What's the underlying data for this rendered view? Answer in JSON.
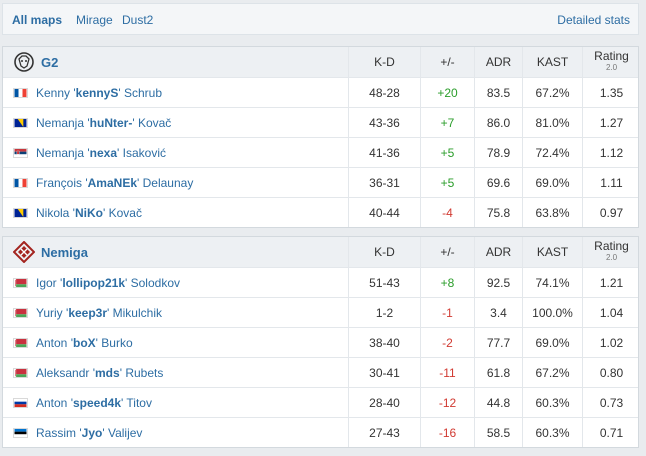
{
  "tabs": [
    {
      "label": "All maps",
      "active": true
    },
    {
      "label": "Mirage",
      "active": false
    },
    {
      "label": "Dust2",
      "active": false
    }
  ],
  "detailed_stats": "Detailed stats",
  "headers": {
    "kd": "K-D",
    "pm": "+/-",
    "adr": "ADR",
    "kast": "KAST",
    "rating": "Rating",
    "rating_sub": "2.0"
  },
  "teams": [
    {
      "name": "G2",
      "logo": "g2-logo",
      "players": [
        {
          "first": "Kenny '",
          "nick": "kennyS",
          "last": "' Schrub",
          "flag": "france",
          "kd": "48-28",
          "pm": "+20",
          "adr": "83.5",
          "kast": "67.2%",
          "rating": "1.35"
        },
        {
          "first": "Nemanja '",
          "nick": "huNter-",
          "last": "' Kovač",
          "flag": "bosnia",
          "kd": "43-36",
          "pm": "+7",
          "adr": "86.0",
          "kast": "81.0%",
          "rating": "1.27"
        },
        {
          "first": "Nemanja '",
          "nick": "nexa",
          "last": "' Isaković",
          "flag": "serbia",
          "kd": "41-36",
          "pm": "+5",
          "adr": "78.9",
          "kast": "72.4%",
          "rating": "1.12"
        },
        {
          "first": "François '",
          "nick": "AmaNEk",
          "last": "' Delaunay",
          "flag": "france",
          "kd": "36-31",
          "pm": "+5",
          "adr": "69.6",
          "kast": "69.0%",
          "rating": "1.11"
        },
        {
          "first": "Nikola '",
          "nick": "NiKo",
          "last": "' Kovač",
          "flag": "bosnia",
          "kd": "40-44",
          "pm": "-4",
          "adr": "75.8",
          "kast": "63.8%",
          "rating": "0.97"
        }
      ]
    },
    {
      "name": "Nemiga",
      "logo": "nemiga-logo",
      "players": [
        {
          "first": "Igor '",
          "nick": "lollipop21k",
          "last": "' Solodkov",
          "flag": "belarus",
          "kd": "51-43",
          "pm": "+8",
          "adr": "92.5",
          "kast": "74.1%",
          "rating": "1.21"
        },
        {
          "first": "Yuriy '",
          "nick": "keep3r",
          "last": "' Mikulchik",
          "flag": "belarus",
          "kd": "1-2",
          "pm": "-1",
          "adr": "3.4",
          "kast": "100.0%",
          "rating": "1.04"
        },
        {
          "first": "Anton '",
          "nick": "boX",
          "last": "' Burko",
          "flag": "belarus",
          "kd": "38-40",
          "pm": "-2",
          "adr": "77.7",
          "kast": "69.0%",
          "rating": "1.02"
        },
        {
          "first": "Aleksandr '",
          "nick": "mds",
          "last": "' Rubets",
          "flag": "belarus",
          "kd": "30-41",
          "pm": "-11",
          "adr": "61.8",
          "kast": "67.2%",
          "rating": "0.80"
        },
        {
          "first": "Anton '",
          "nick": "speed4k",
          "last": "' Titov",
          "flag": "russia",
          "kd": "28-40",
          "pm": "-12",
          "adr": "44.8",
          "kast": "60.3%",
          "rating": "0.73"
        },
        {
          "first": "Rassim '",
          "nick": "Jyo",
          "last": "' Valijev",
          "flag": "estonia",
          "kd": "27-43",
          "pm": "-16",
          "adr": "58.5",
          "kast": "60.3%",
          "rating": "0.71"
        }
      ]
    }
  ],
  "colors": {
    "link": "#2d6da3",
    "positive": "#2a9d2a",
    "negative": "#d13a32"
  }
}
